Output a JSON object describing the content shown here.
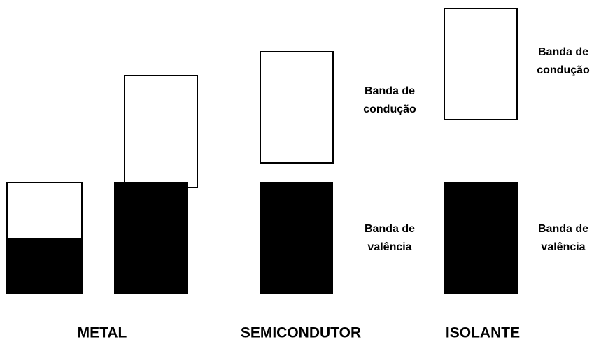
{
  "columns": [
    {
      "title": "METAL"
    },
    {
      "title": "SEMICONDUTOR",
      "conduction_label": [
        "Banda de",
        "condução"
      ],
      "valence_label": [
        "Banda de",
        "valência"
      ]
    },
    {
      "title": "ISOLANTE",
      "conduction_label": [
        "Banda de",
        "condução"
      ],
      "valence_label": [
        "Banda de",
        "valência"
      ]
    }
  ]
}
